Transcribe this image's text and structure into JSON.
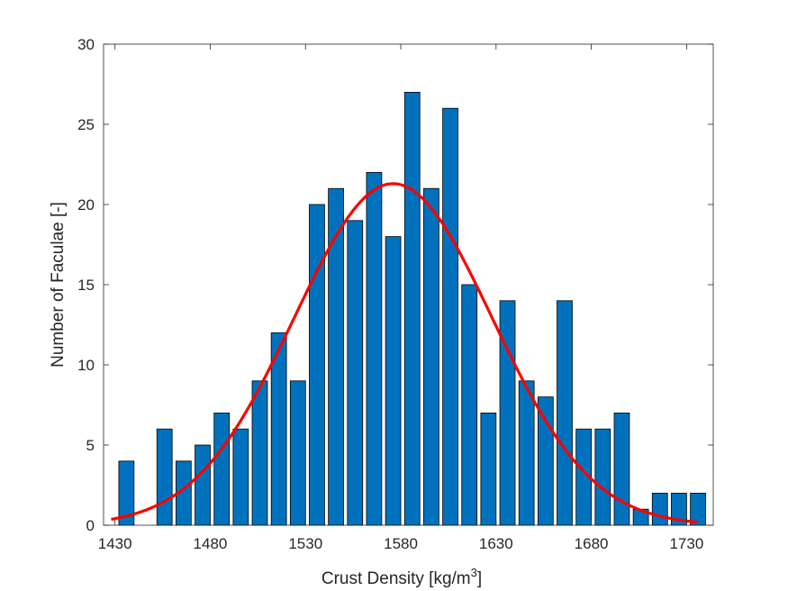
{
  "chart_data": {
    "type": "bar",
    "title": "",
    "xlabel": "Crust Density [kg/m",
    "xlabel_superscript": "3",
    "xlabel_suffix": "]",
    "ylabel": "Number of Faculae [-]",
    "xlim": [
      1424,
      1744
    ],
    "ylim": [
      0,
      30
    ],
    "x_ticks": [
      1430,
      1480,
      1530,
      1580,
      1630,
      1680,
      1730
    ],
    "x_tick_labels": [
      "1430",
      "1480",
      "1530",
      "1580",
      "1630",
      "1680",
      "1730"
    ],
    "y_ticks": [
      0,
      5,
      10,
      15,
      20,
      25,
      30
    ],
    "y_tick_labels": [
      "0",
      "5",
      "10",
      "15",
      "20",
      "25",
      "30"
    ],
    "bin_width": 10,
    "bar_centers": [
      1436,
      1446,
      1456,
      1466,
      1476,
      1486,
      1496,
      1506,
      1516,
      1526,
      1536,
      1546,
      1556,
      1566,
      1576,
      1586,
      1596,
      1606,
      1616,
      1626,
      1636,
      1646,
      1656,
      1666,
      1676,
      1686,
      1696,
      1706,
      1716,
      1726,
      1736
    ],
    "values": [
      4,
      0,
      6,
      4,
      5,
      7,
      6,
      9,
      12,
      9,
      20,
      21,
      19,
      22,
      18,
      27,
      21,
      26,
      15,
      7,
      14,
      9,
      8,
      14,
      6,
      6,
      7,
      1,
      2,
      2,
      2
    ],
    "bar_color": "#0072BD",
    "bar_edge_color": "#000000",
    "fit_curve": {
      "type": "normal",
      "mean": 1576,
      "std": 52,
      "peak": 21.3,
      "x_range": [
        1428,
        1736
      ],
      "color": "#FF0000"
    },
    "grid": false,
    "legend": "none"
  }
}
